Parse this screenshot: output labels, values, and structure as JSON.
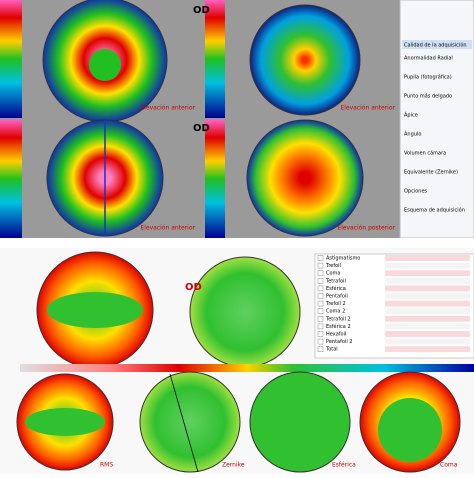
{
  "top": {
    "eye_labels": [
      "OD",
      "OD"
    ],
    "map_captions": [
      "Elevación anterior",
      "Elevación anterior",
      "Elevación anterior",
      "Elevación posterior"
    ],
    "sidebar_title": "Calidad de la adquisición",
    "sidebar_lines": [
      "Anormalidad Radial",
      "Pupila (fotográfica)",
      "Punto más delgado",
      "Ápice",
      "Ángulo",
      "Volumen cámara",
      "Equivalente (Zernike)",
      "Opciones",
      "Esquema de adquisición"
    ]
  },
  "bottom": {
    "eye_label": "OD",
    "zernike_terms": [
      "Astigmatismo",
      "Trefoil",
      "Coma",
      "Tetrafoil",
      "Esférica",
      "Pentafoil",
      "Trefoil 2",
      "Coma 2",
      "Tetrafoil 2",
      "Esférica 2",
      "Hexafoil",
      "Pentafoil 2",
      "Total"
    ],
    "map_captions": [
      "RMS",
      "Zernike",
      "Esférica",
      "Coma"
    ]
  }
}
